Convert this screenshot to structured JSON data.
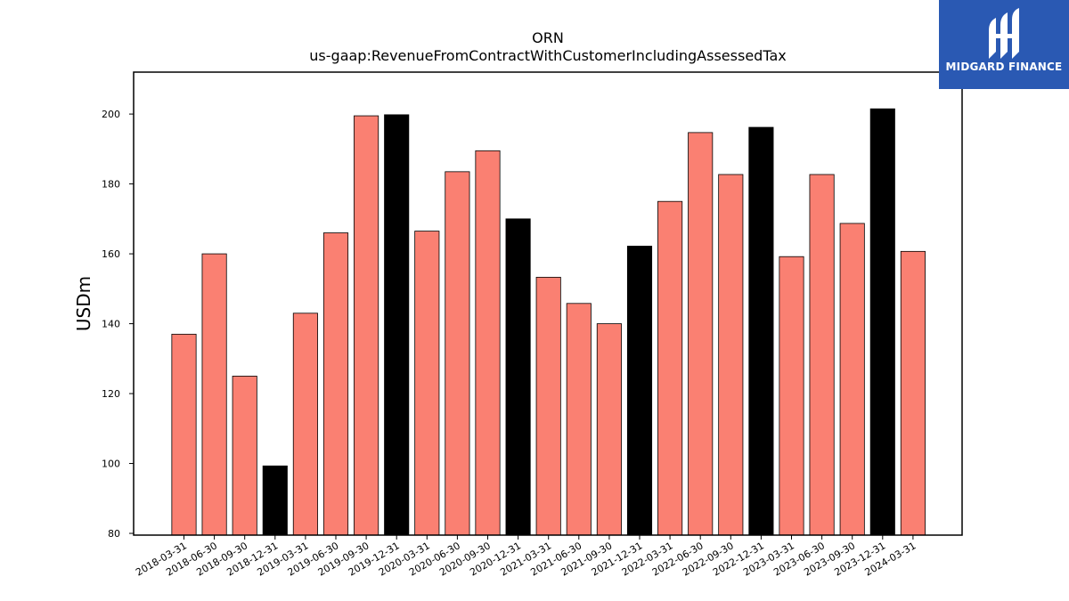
{
  "chart_data": {
    "type": "bar",
    "title": "ORN",
    "subtitle": "us-gaap:RevenueFromContractWithCustomerIncludingAssessedTax",
    "xlabel": "",
    "ylabel": "USDm",
    "ylim": [
      79.5,
      212
    ],
    "yticks": [
      80,
      100,
      120,
      140,
      160,
      180,
      200
    ],
    "grid": false,
    "categories": [
      "2018-03-31",
      "2018-06-30",
      "2018-09-30",
      "2018-12-31",
      "2019-03-31",
      "2019-06-30",
      "2019-09-30",
      "2019-12-31",
      "2020-03-31",
      "2020-06-30",
      "2020-09-30",
      "2020-12-31",
      "2021-03-31",
      "2021-06-30",
      "2021-09-30",
      "2021-12-31",
      "2022-03-31",
      "2022-06-30",
      "2022-09-30",
      "2022-12-31",
      "2023-03-31",
      "2023-06-30",
      "2023-09-30",
      "2023-12-31",
      "2024-03-31"
    ],
    "values": [
      137.0,
      160.0,
      125.0,
      99.3,
      143.0,
      166.0,
      199.5,
      199.8,
      166.5,
      183.5,
      189.5,
      170.0,
      153.3,
      145.8,
      140.0,
      162.2,
      175.0,
      194.7,
      182.7,
      196.2,
      159.2,
      182.7,
      168.7,
      201.5,
      160.7
    ],
    "colors": {
      "quarter": "#fa8072",
      "year_end": "#000000",
      "edge": "#000000"
    }
  },
  "logo": {
    "text": "MIDGARD FINANCE",
    "color": "#2a59b3"
  }
}
